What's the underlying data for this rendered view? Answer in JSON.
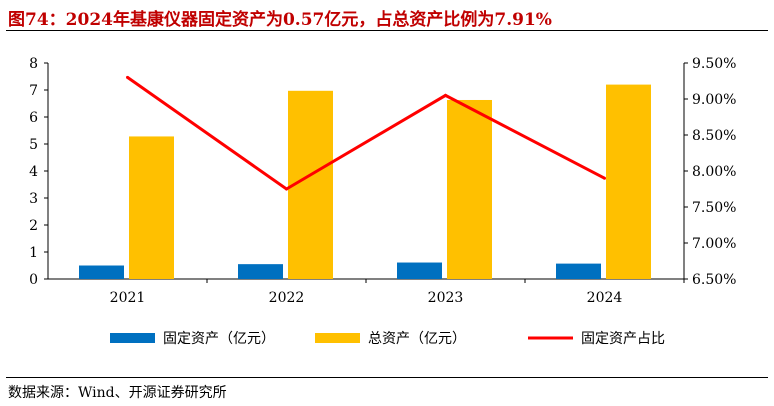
{
  "title": "图74：2024年基康仪器固定资产为0.57亿元，占总资产比例为7.91%",
  "source": "数据来源：Wind、开源证券研究所",
  "chart_data": {
    "type": "bar",
    "categories": [
      "2021",
      "2022",
      "2023",
      "2024"
    ],
    "series": [
      {
        "name": "固定资产（亿元）",
        "type": "bar",
        "axis": "left",
        "color": "#0070c0",
        "values": [
          0.5,
          0.55,
          0.61,
          0.57
        ]
      },
      {
        "name": "总资产（亿元）",
        "type": "bar",
        "axis": "left",
        "color": "#ffc000",
        "values": [
          5.28,
          6.97,
          6.63,
          7.2
        ]
      },
      {
        "name": "固定资产占比",
        "type": "line",
        "axis": "right",
        "color": "#ff0000",
        "values": [
          9.3,
          7.75,
          9.05,
          7.9
        ]
      }
    ],
    "y_left": {
      "min": 0,
      "max": 8,
      "ticks": [
        "0",
        "1",
        "2",
        "3",
        "4",
        "5",
        "6",
        "7",
        "8"
      ]
    },
    "y_right": {
      "min": 6.5,
      "max": 9.5,
      "ticks": [
        "6.50%",
        "7.00%",
        "7.50%",
        "8.00%",
        "8.50%",
        "9.00%",
        "9.50%"
      ]
    },
    "grid": false,
    "legend": "bottom"
  }
}
